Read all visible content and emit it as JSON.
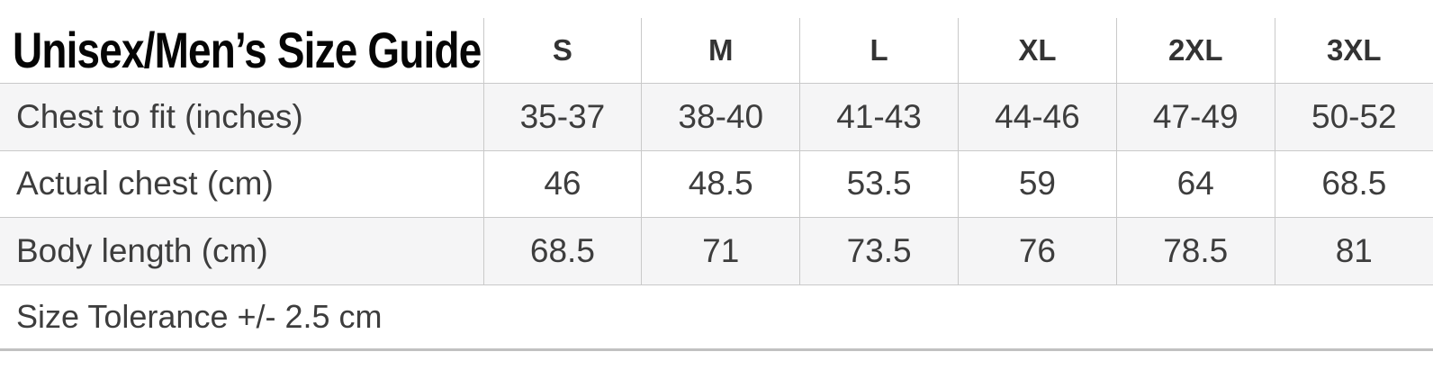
{
  "table": {
    "title": "Unisex/Men’s Size Guide",
    "columns": [
      "S",
      "M",
      "L",
      "XL",
      "2XL",
      "3XL"
    ],
    "rows": [
      {
        "label": "Chest to fit (inches)",
        "values": [
          "35-37",
          "38-40",
          "41-43",
          "44-46",
          "47-49",
          "50-52"
        ]
      },
      {
        "label": "Actual chest (cm)",
        "values": [
          "46",
          "48.5",
          "53.5",
          "59",
          "64",
          "68.5"
        ]
      },
      {
        "label": "Body length (cm)",
        "values": [
          "68.5",
          "71",
          "73.5",
          "76",
          "78.5",
          "81"
        ]
      }
    ],
    "footnote": "Size Tolerance +/- 2.5 cm"
  },
  "colors": {
    "stripe_row_background": "#f5f5f6",
    "grid_border": "#c9c9c9",
    "bottom_border": "#c1c1c1",
    "cell_text": "#3d3d3d",
    "title_text": "#050505"
  }
}
